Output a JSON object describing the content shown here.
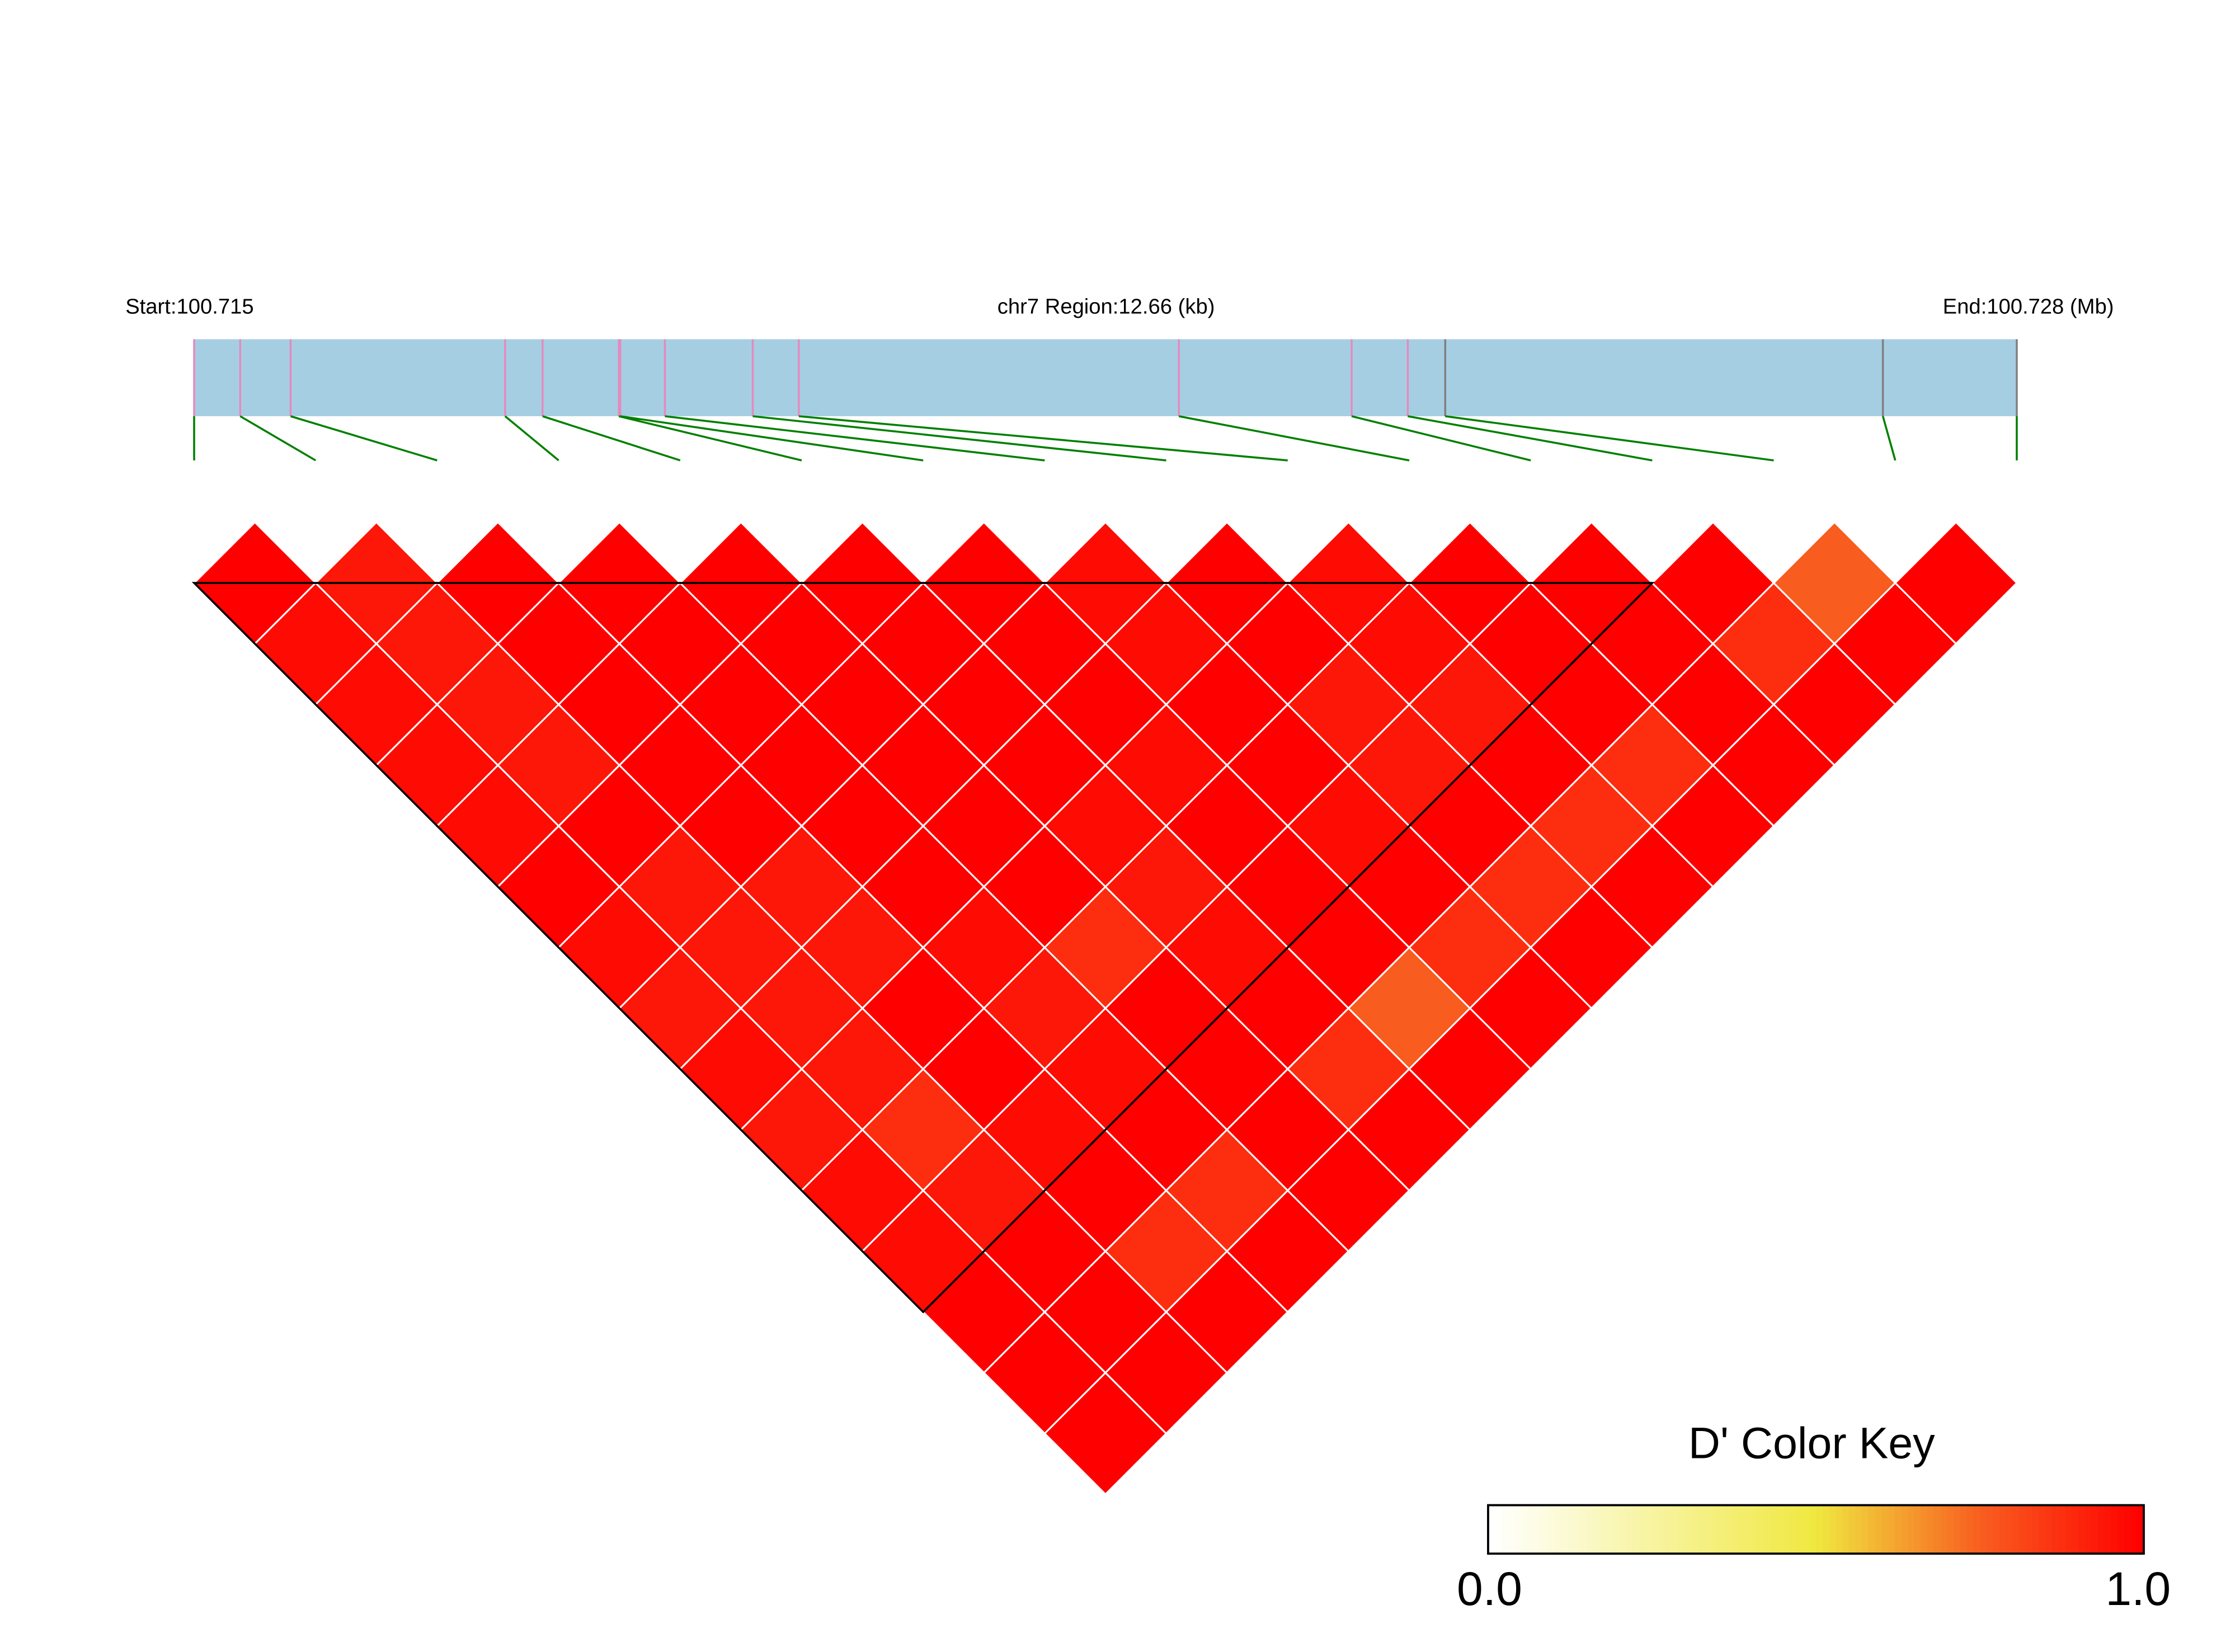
{
  "header": {
    "start_label": "Start:100.715",
    "region_label": "chr7 Region:12.66 (kb)",
    "end_label": "End:100.728 (Mb)"
  },
  "colors": {
    "region_bar": "#A6CEE3",
    "block_snp_mark": "#E58AC0",
    "other_snp_mark": "#808080",
    "connector": "#008000",
    "cell_border": "#FFFFFF",
    "block_outline": "#000000"
  },
  "chart_data": {
    "type": "heatmap",
    "measure": "D'",
    "chromosome": "chr7",
    "region_start_mb": 100.715,
    "region_end_mb": 100.728,
    "region_length_kb": 12.66,
    "snp_positions_mb": [
      100.715,
      100.71532,
      100.71567,
      100.71716,
      100.71742,
      100.71795,
      100.71796,
      100.71827,
      100.71888,
      100.7192,
      100.72184,
      100.72304,
      100.72343,
      100.72369,
      100.72673,
      100.72766
    ],
    "snps_in_block": [
      0,
      1,
      2,
      3,
      4,
      5,
      6,
      7,
      8,
      9,
      10,
      11,
      12
    ],
    "blocks": [
      [
        0,
        12
      ]
    ],
    "dprime_upper_triangle": [
      [
        1,
        0.97,
        0.97,
        0.97,
        0.97,
        1,
        0.97,
        0.94,
        0.97,
        0.94,
        0.97,
        0.97,
        1,
        1,
        1
      ],
      [
        0.94,
        0.94,
        0.94,
        0.94,
        1,
        0.94,
        0.94,
        0.94,
        0.94,
        0.88,
        0.94,
        1,
        1,
        1
      ],
      [
        1,
        1,
        1,
        1,
        1,
        0.94,
        0.94,
        1,
        1,
        0.97,
        1,
        0.88,
        1
      ],
      [
        1,
        1,
        1,
        1,
        1,
        1,
        0.97,
        0.94,
        0.97,
        1,
        0.88,
        1
      ],
      [
        1,
        1,
        1,
        1,
        1,
        1,
        0.88,
        1,
        1,
        1,
        1
      ],
      [
        1,
        1,
        1,
        1,
        0.97,
        0.94,
        0.97,
        1,
        0.88,
        1
      ],
      [
        1,
        1,
        1,
        0.97,
        1,
        1,
        1,
        0.76,
        1
      ],
      [
        0.97,
        0.97,
        1,
        1,
        0.97,
        1,
        0.88,
        1
      ],
      [
        1,
        1,
        0.94,
        0.94,
        1,
        0.88,
        1
      ],
      [
        0.97,
        0.97,
        0.94,
        1,
        0.88,
        1
      ],
      [
        1,
        1,
        1,
        0.88,
        1
      ],
      [
        1,
        1,
        1,
        1
      ],
      [
        1,
        0.88,
        1
      ],
      [
        0.76,
        1
      ],
      [
        1
      ]
    ],
    "color_scale": {
      "stops": [
        [
          0,
          "#FFFFFF"
        ],
        [
          0.5,
          "#F0E840"
        ],
        [
          0.75,
          "#F86020"
        ],
        [
          1,
          "#FF0000"
        ]
      ]
    },
    "legend": {
      "title": "D' Color Key",
      "min_label": "0.0",
      "max_label": "1.0",
      "placement": "bottom-right"
    }
  }
}
